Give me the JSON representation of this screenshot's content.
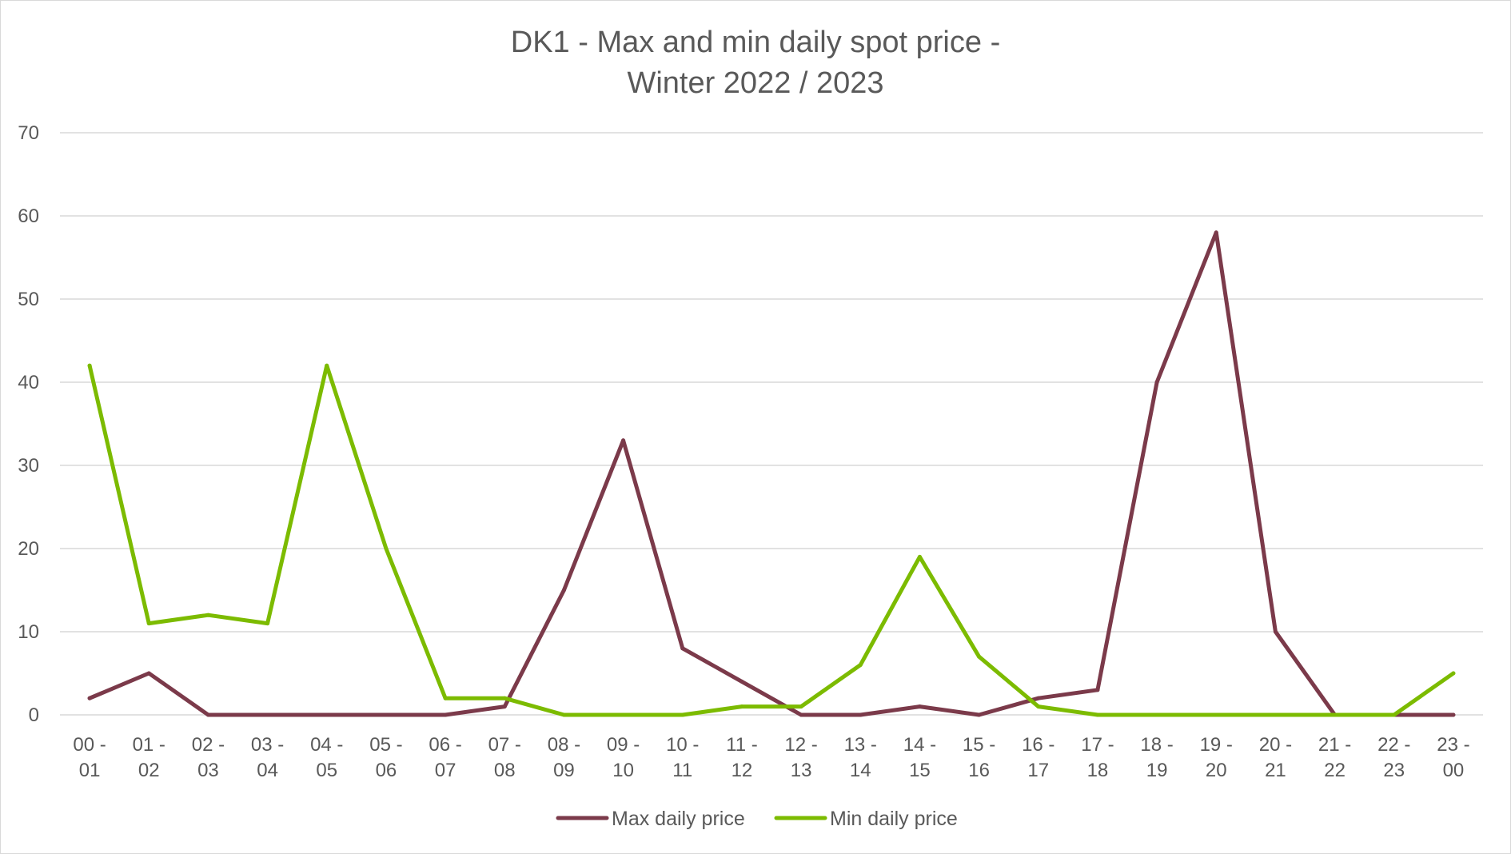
{
  "chart_data": {
    "type": "line",
    "title_lines": [
      "DK1 - Max and min daily spot price -",
      "Winter 2022 / 2023"
    ],
    "categories": [
      [
        "00 -",
        "01"
      ],
      [
        "01 -",
        "02"
      ],
      [
        "02 -",
        "03"
      ],
      [
        "03 -",
        "04"
      ],
      [
        "04 -",
        "05"
      ],
      [
        "05 -",
        "06"
      ],
      [
        "06 -",
        "07"
      ],
      [
        "07 -",
        "08"
      ],
      [
        "08 -",
        "09"
      ],
      [
        "09 -",
        "10"
      ],
      [
        "10 -",
        "11"
      ],
      [
        "11 -",
        "12"
      ],
      [
        "12 -",
        "13"
      ],
      [
        "13 -",
        "14"
      ],
      [
        "14 -",
        "15"
      ],
      [
        "15 -",
        "16"
      ],
      [
        "16 -",
        "17"
      ],
      [
        "17 -",
        "18"
      ],
      [
        "18 -",
        "19"
      ],
      [
        "19 -",
        "20"
      ],
      [
        "20 -",
        "21"
      ],
      [
        "21 -",
        "22"
      ],
      [
        "22 -",
        "23"
      ],
      [
        "23 -",
        "00"
      ]
    ],
    "ylim": [
      0,
      70
    ],
    "yticks": [
      0,
      10,
      20,
      30,
      40,
      50,
      60,
      70
    ],
    "grid": true,
    "legend_position": "bottom",
    "series": [
      {
        "name": "Max daily price",
        "color": "#7b3a4a",
        "values": [
          2,
          5,
          0,
          0,
          0,
          0,
          0,
          1,
          15,
          33,
          8,
          4,
          0,
          0,
          1,
          0,
          2,
          3,
          40,
          58,
          10,
          0,
          0,
          0
        ]
      },
      {
        "name": "Min daily price",
        "color": "#7cbb00",
        "values": [
          42,
          11,
          12,
          11,
          42,
          20,
          2,
          2,
          0,
          0,
          0,
          1,
          1,
          6,
          19,
          7,
          1,
          0,
          0,
          0,
          0,
          0,
          0,
          5
        ]
      }
    ]
  }
}
